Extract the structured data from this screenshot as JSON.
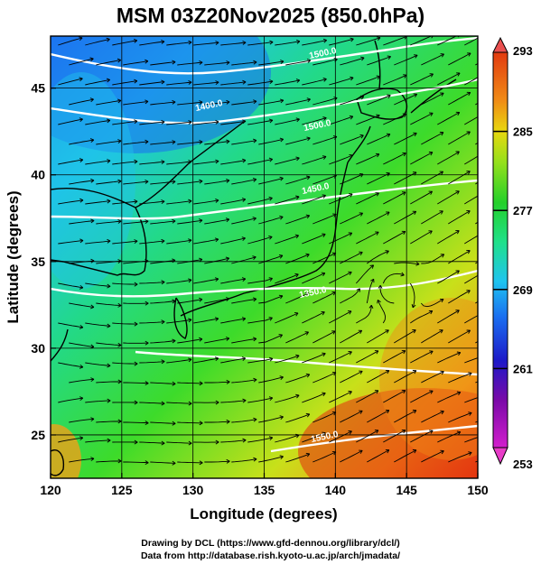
{
  "title": "MSM 03Z20Nov2025 (850.0hPa)",
  "map": {
    "xlabel": "Longitude (degrees)",
    "ylabel": "Latitude  (degrees)",
    "xlim": [
      120,
      150
    ],
    "ylim": [
      22.5,
      48
    ],
    "xticks": [
      "120",
      "125",
      "130",
      "135",
      "140",
      "145",
      "150"
    ],
    "yticks": [
      "25",
      "30",
      "35",
      "40",
      "45"
    ],
    "grid": true,
    "contour_labels": [
      "1500.0",
      "1500.0",
      "1400.0",
      "1450.0",
      "1350.0",
      "1550.0"
    ]
  },
  "colorbar": {
    "ticks": [
      "293",
      "285",
      "277",
      "269",
      "261",
      "253"
    ],
    "min": 253,
    "max": 293,
    "colors": [
      "#d21ecd",
      "#7a0aa8",
      "#1d19c8",
      "#1a6ef0",
      "#1fc4f0",
      "#1fe08a",
      "#24d02a",
      "#93e01c",
      "#e8d80f",
      "#f08a16",
      "#e23a10",
      "#ea5050"
    ]
  },
  "credits": {
    "line1": "Drawing by DCL (https://www.gfd-dennou.org/library/dcl/)",
    "line2": "Data from http://database.rish.kyoto-u.ac.jp/arch/jmadata/"
  }
}
